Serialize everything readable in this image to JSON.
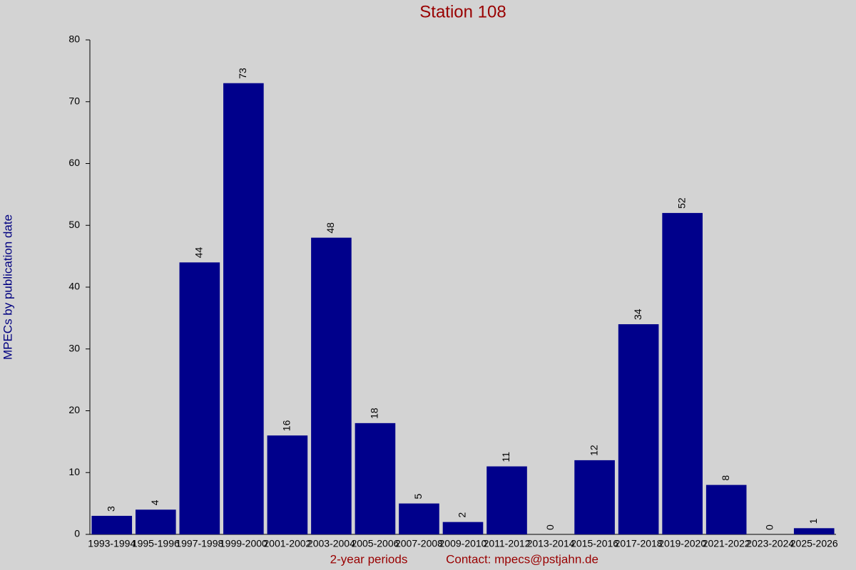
{
  "chart_data": {
    "type": "bar",
    "title": "Station 108",
    "x_label": "2-year periods",
    "contact": "Contact: mpecs@pstjahn.de",
    "y_label": "MPECs by publication date",
    "categories": [
      "1993-1994",
      "1995-1996",
      "1997-1998",
      "1999-2000",
      "2001-2002",
      "2003-2004",
      "2005-2006",
      "2007-2008",
      "2009-2010",
      "2011-2012",
      "2013-2014",
      "2015-2016",
      "2017-2018",
      "2019-2020",
      "2021-2022",
      "2023-2024",
      "2025-2026"
    ],
    "values": [
      3,
      4,
      44,
      73,
      16,
      48,
      18,
      5,
      2,
      11,
      0,
      12,
      34,
      52,
      8,
      0,
      1
    ],
    "color": "#00008b",
    "ylim": [
      0,
      80
    ],
    "yticks": [
      0,
      10,
      20,
      30,
      40,
      50,
      60,
      70,
      80
    ],
    "grid": false
  }
}
